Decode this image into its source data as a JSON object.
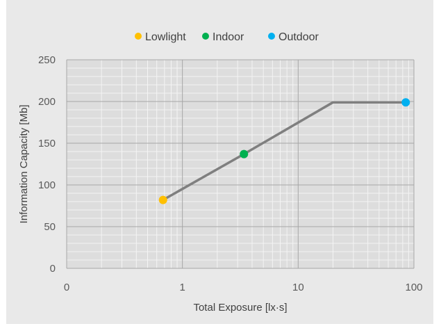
{
  "chart_data": {
    "type": "scatter",
    "title": "",
    "xlabel": "Total Exposure [lx·s]",
    "ylabel": "Information Capacity  [Mb]",
    "x_scale": "log",
    "xlim": [
      0.1,
      100
    ],
    "ylim": [
      0,
      250
    ],
    "x_ticks": [
      0.1,
      1,
      10,
      100
    ],
    "x_tick_labels": [
      "0",
      "1",
      "10",
      "100"
    ],
    "y_ticks": [
      0,
      50,
      100,
      150,
      200,
      250
    ],
    "y_tick_labels": [
      "0",
      "50",
      "100",
      "150",
      "200",
      "250"
    ],
    "grid": true,
    "legend_position": "top",
    "trend_line": {
      "color": "#7f7f7f",
      "points": [
        {
          "x": 0.68,
          "y": 82
        },
        {
          "x": 3.4,
          "y": 137
        },
        {
          "x": 20,
          "y": 199
        },
        {
          "x": 85,
          "y": 199
        }
      ]
    },
    "series": [
      {
        "name": "Lowlight",
        "color": "#ffc000",
        "points": [
          {
            "x": 0.68,
            "y": 82
          }
        ]
      },
      {
        "name": "Indoor",
        "color": "#00b050",
        "points": [
          {
            "x": 3.4,
            "y": 137
          }
        ]
      },
      {
        "name": "Outdoor",
        "color": "#00b0f0",
        "points": [
          {
            "x": 85,
            "y": 199
          }
        ]
      }
    ]
  }
}
